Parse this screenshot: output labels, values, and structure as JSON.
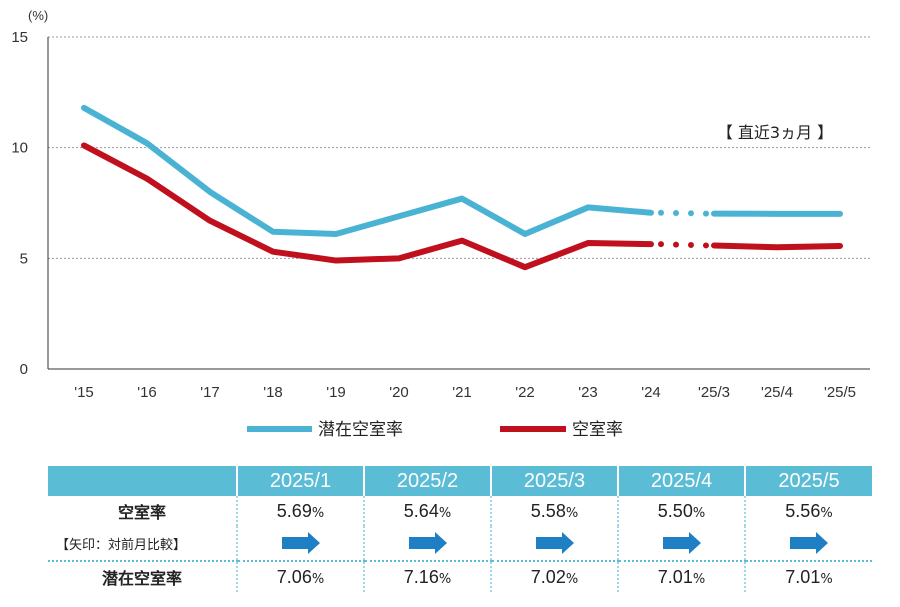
{
  "chart_data": {
    "type": "line",
    "unit_label": "(%)",
    "y_ticks": [
      "0",
      "5",
      "10",
      "15"
    ],
    "ylim": [
      0,
      15
    ],
    "categories": [
      "'15",
      "'16",
      "'17",
      "'18",
      "'19",
      "'20",
      "'21",
      "'22",
      "'23",
      "'24",
      "'25/3",
      "'25/4",
      "'25/5"
    ],
    "series": [
      {
        "name": "潜在空室率",
        "color": "#4ab3d4",
        "values": [
          11.8,
          10.2,
          8.0,
          6.2,
          6.1,
          6.9,
          7.7,
          6.1,
          7.3,
          7.06,
          7.02,
          7.01,
          7.01
        ]
      },
      {
        "name": "空室率",
        "color": "#c0101e",
        "values": [
          10.1,
          8.6,
          6.7,
          5.3,
          4.9,
          5.0,
          5.8,
          4.6,
          5.69,
          5.64,
          5.58,
          5.5,
          5.56
        ]
      }
    ],
    "annotation": "【 直近3ヵ月 】",
    "grid": true,
    "legend_position": "bottom"
  },
  "table": {
    "headers": [
      "2025/1",
      "2025/2",
      "2025/3",
      "2025/4",
      "2025/5"
    ],
    "row1": {
      "label": "空室率",
      "values": [
        "5.69",
        "5.64",
        "5.58",
        "5.50",
        "5.56"
      ]
    },
    "row2": {
      "label": "【矢印：対前月比較】",
      "arrow_color": "#1f7fc4"
    },
    "row3": {
      "label": "潜在空室率",
      "values": [
        "7.06",
        "7.16",
        "7.02",
        "7.01",
        "7.01"
      ]
    },
    "percent_sign": "%"
  }
}
